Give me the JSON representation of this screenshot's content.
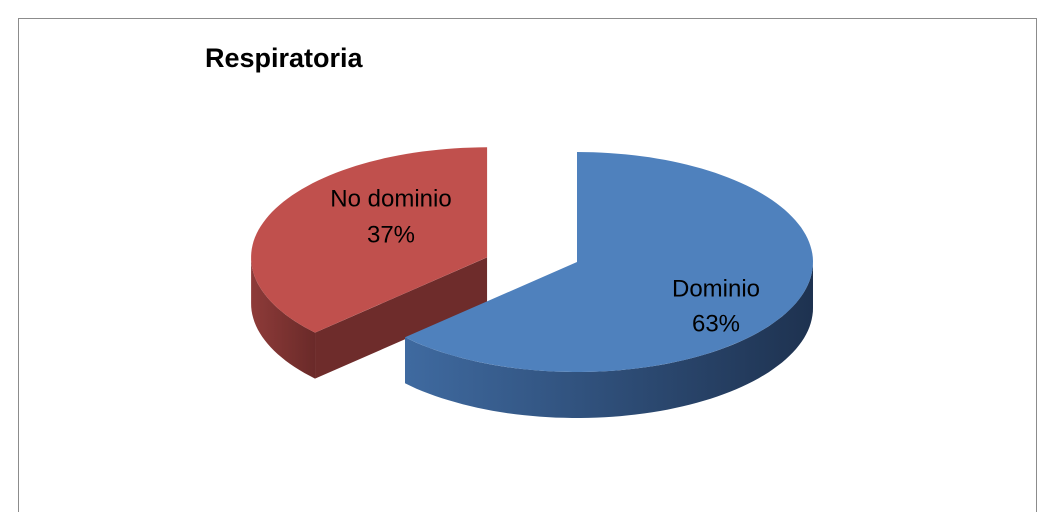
{
  "chart_data": {
    "type": "pie",
    "title": "Respiratoria",
    "categories": [
      "Dominio",
      "No dominio"
    ],
    "values": [
      63,
      37
    ],
    "value_labels": [
      "63%",
      "37%"
    ],
    "colors": [
      "#4f81bd",
      "#c0504d"
    ]
  }
}
